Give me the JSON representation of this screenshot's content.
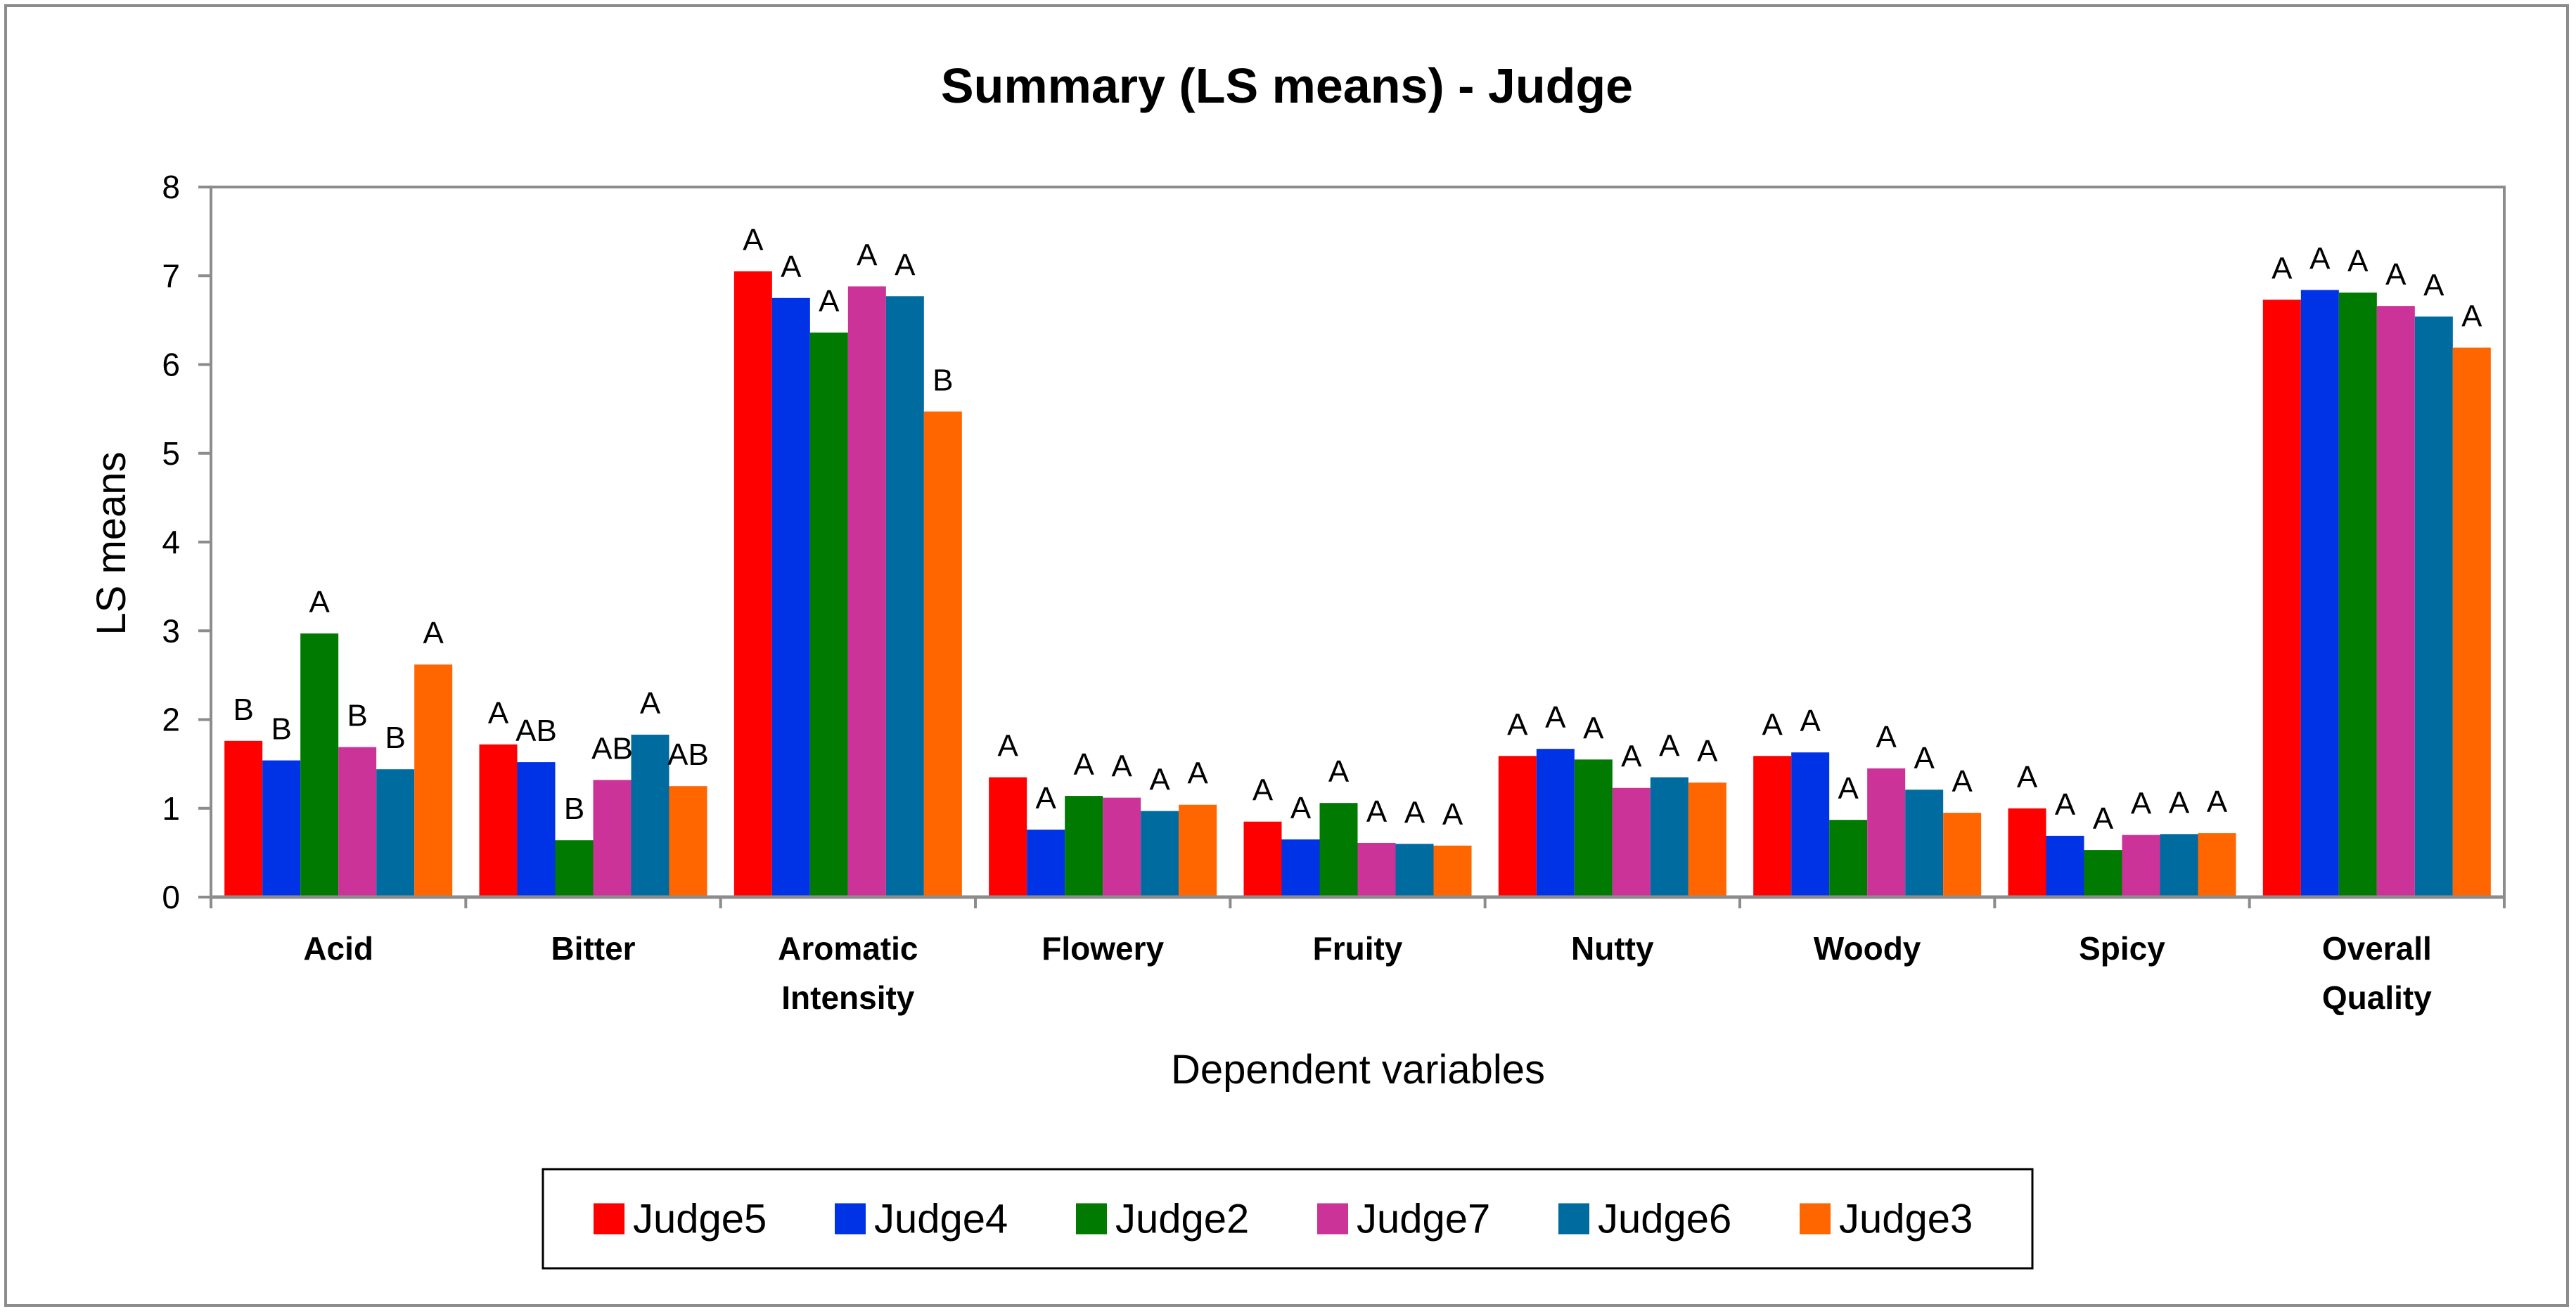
{
  "chart_data": {
    "type": "bar",
    "title": "Summary (LS means) - Judge",
    "xlabel": "Dependent variables",
    "ylabel": "LS means",
    "ylim": [
      0,
      8
    ],
    "yticks": [
      0,
      1,
      2,
      3,
      4,
      5,
      6,
      7,
      8
    ],
    "grid": false,
    "legend_position": "bottom",
    "categories": [
      [
        "Acid"
      ],
      [
        "Bitter"
      ],
      [
        "Aromatic",
        "Intensity"
      ],
      [
        "Flowery"
      ],
      [
        "Fruity"
      ],
      [
        "Nutty"
      ],
      [
        "Woody"
      ],
      [
        "Spicy"
      ],
      [
        "Overall",
        "Quality"
      ]
    ],
    "series": [
      {
        "name": "Judge5",
        "color": "#ff0000",
        "values": [
          1.76,
          1.72,
          7.05,
          1.35,
          0.85,
          1.59,
          1.59,
          1.0,
          6.73
        ],
        "groups": [
          "B",
          "A",
          "A",
          "A",
          "A",
          "A",
          "A",
          "A",
          "A"
        ]
      },
      {
        "name": "Judge4",
        "color": "#0033e6",
        "values": [
          1.54,
          1.52,
          6.75,
          0.76,
          0.65,
          1.67,
          1.63,
          0.69,
          6.84
        ],
        "groups": [
          "B",
          "AB",
          "A",
          "A",
          "A",
          "A",
          "A",
          "A",
          "A"
        ]
      },
      {
        "name": "Judge2",
        "color": "#007a00",
        "values": [
          2.97,
          0.64,
          6.36,
          1.14,
          1.06,
          1.55,
          0.87,
          0.53,
          6.81
        ],
        "groups": [
          "A",
          "B",
          "A",
          "A",
          "A",
          "A",
          "A",
          "A",
          "A"
        ]
      },
      {
        "name": "Judge7",
        "color": "#cc3399",
        "values": [
          1.69,
          1.32,
          6.88,
          1.12,
          0.61,
          1.23,
          1.45,
          0.7,
          6.66
        ],
        "groups": [
          "B",
          "AB",
          "A",
          "A",
          "A",
          "A",
          "A",
          "A",
          "A"
        ]
      },
      {
        "name": "Judge6",
        "color": "#006b9e",
        "values": [
          1.44,
          1.83,
          6.77,
          0.97,
          0.6,
          1.35,
          1.21,
          0.71,
          6.54
        ],
        "groups": [
          "B",
          "A",
          "A",
          "A",
          "A",
          "A",
          "A",
          "A",
          "A"
        ]
      },
      {
        "name": "Judge3",
        "color": "#ff6600",
        "values": [
          2.62,
          1.25,
          5.47,
          1.04,
          0.58,
          1.29,
          0.95,
          0.72,
          6.19
        ],
        "groups": [
          "A",
          "AB",
          "B",
          "A",
          "A",
          "A",
          "A",
          "A",
          "A"
        ]
      }
    ]
  }
}
